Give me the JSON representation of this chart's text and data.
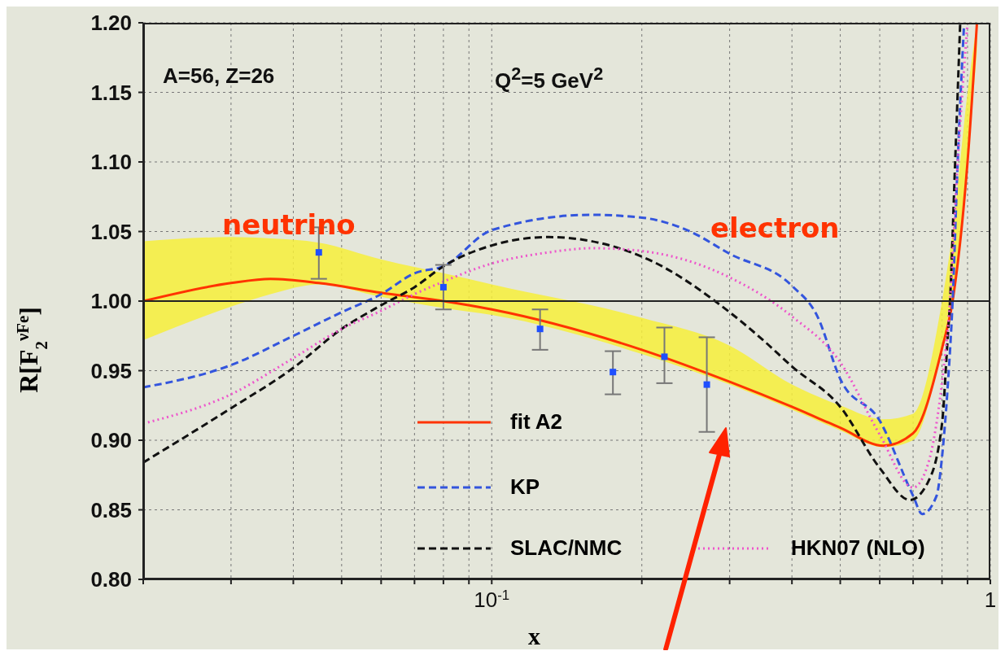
{
  "chart_data": {
    "type": "line",
    "xlabel": "x",
    "ylabel": "R[F$_{2}$$^{νFe}$]",
    "log": "x",
    "grid": true,
    "legend": "bottom",
    "xlim": [
      0.02,
      1
    ],
    "xticks": [
      {
        "value": 0.02,
        "label": null
      },
      {
        "value": 0.03,
        "label": null
      },
      {
        "value": 0.04,
        "label": null
      },
      {
        "value": 0.05,
        "label": null
      },
      {
        "value": 0.06,
        "label": null
      },
      {
        "value": 0.07,
        "label": null
      },
      {
        "value": 0.08,
        "label": null
      },
      {
        "value": 0.09,
        "label": null
      },
      {
        "value": 0.1,
        "label": "10$^{-1}$"
      },
      {
        "value": 0.2,
        "label": null
      },
      {
        "value": 0.3,
        "label": null
      },
      {
        "value": 0.4,
        "label": null
      },
      {
        "value": 0.5,
        "label": null
      },
      {
        "value": 0.6,
        "label": null
      },
      {
        "value": 0.7,
        "label": null
      },
      {
        "value": 0.8,
        "label": null
      },
      {
        "value": 0.9,
        "label": null
      },
      {
        "value": 1,
        "label": "1"
      }
    ],
    "ylim": [
      0.8,
      1.2
    ],
    "yticks": [
      {
        "value": 0.8,
        "label": "0.80"
      },
      {
        "value": 0.85,
        "label": "0.85"
      },
      {
        "value": 0.9,
        "label": "0.90"
      },
      {
        "value": 0.95,
        "label": "0.95"
      },
      {
        "value": 1,
        "label": "1.00"
      },
      {
        "value": 1.05,
        "label": "1.05"
      },
      {
        "value": 1.1,
        "label": "1.10"
      },
      {
        "value": 1.15,
        "label": "1.15"
      },
      {
        "value": 1.2,
        "label": "1.20"
      }
    ],
    "ref_lines": [
      {
        "axis": "y",
        "value": 1,
        "color": "#222222"
      }
    ],
    "annotations": [
      "A=56, Z=26",
      "Q$^{2}$=5 GeV$^{2}$",
      "neutrino",
      "electron"
    ],
    "series": [
      {
        "name": "fit A2",
        "color": "#ff3300",
        "line_style": "solid",
        "x": [
          0.02,
          0.03,
          0.036,
          0.045,
          0.06,
          0.08,
          0.1,
          0.2,
          0.3,
          0.4,
          0.5,
          0.61,
          0.7,
          0.8,
          0.84,
          0.9,
          0.94
        ],
        "values": [
          1.0,
          1.013,
          1.016,
          1.013,
          1.006,
          1.0,
          0.994,
          0.965,
          0.942,
          0.924,
          0.909,
          0.896,
          0.905,
          0.966,
          1.0,
          1.1,
          1.2
        ],
        "lower": [
          0.972,
          0.996,
          1.005,
          1.012,
          1.003,
          0.995,
          0.99,
          0.962,
          0.94,
          0.922,
          0.907,
          0.895,
          0.9,
          0.966,
          1.0,
          1.1,
          1.18
        ],
        "upper": [
          1.043,
          1.046,
          1.045,
          1.042,
          1.03,
          1.02,
          1.012,
          0.988,
          0.968,
          0.94,
          0.925,
          0.915,
          0.919,
          1.0,
          1.05,
          1.15,
          1.2
        ]
      },
      {
        "name": "KP",
        "color": "#3355dd",
        "line_style": "dashed",
        "x": [
          0.02,
          0.03,
          0.04,
          0.05,
          0.06,
          0.07,
          0.08,
          0.1,
          0.158,
          0.2,
          0.25,
          0.3,
          0.4,
          0.45,
          0.5,
          0.6,
          0.7,
          0.73,
          0.78,
          0.8,
          0.82,
          0.84,
          0.86,
          0.886
        ],
        "values": [
          0.938,
          0.954,
          0.975,
          0.992,
          1.005,
          1.02,
          1.025,
          1.051,
          1.062,
          1.06,
          1.05,
          1.034,
          1.011,
          0.989,
          0.944,
          0.914,
          0.86,
          0.847,
          0.86,
          0.888,
          0.935,
          1.0,
          1.1,
          1.2
        ]
      },
      {
        "name": "SLAC/NMC",
        "color": "#111111",
        "line_style": "dashed",
        "x": [
          0.02,
          0.03,
          0.04,
          0.05,
          0.06,
          0.07,
          0.08,
          0.1,
          0.13,
          0.2,
          0.3,
          0.35,
          0.4,
          0.5,
          0.6,
          0.69,
          0.75,
          0.8,
          0.82,
          0.83,
          0.85,
          0.87
        ],
        "values": [
          0.884,
          0.923,
          0.952,
          0.98,
          0.997,
          1.01,
          1.025,
          1.04,
          1.046,
          1.032,
          0.992,
          0.972,
          0.953,
          0.924,
          0.88,
          0.857,
          0.87,
          0.912,
          0.97,
          1.0,
          1.1,
          1.2
        ]
      },
      {
        "name": "HKN07 (NLO)",
        "color": "#ee55cc",
        "line_style": "dotted",
        "x": [
          0.02,
          0.03,
          0.04,
          0.05,
          0.06,
          0.07,
          0.08,
          0.1,
          0.13,
          0.16,
          0.2,
          0.3,
          0.4,
          0.5,
          0.6,
          0.7,
          0.75,
          0.8,
          0.83,
          0.86,
          0.9
        ],
        "values": [
          0.912,
          0.933,
          0.959,
          0.98,
          0.993,
          1.005,
          1.014,
          1.027,
          1.035,
          1.038,
          1.036,
          1.017,
          0.989,
          0.956,
          0.904,
          0.866,
          0.883,
          0.942,
          1.0,
          1.1,
          1.2
        ]
      },
      {
        "type": "scatter",
        "color": "#1f4fff",
        "marker": "square",
        "x": [
          0.045,
          0.08,
          0.125,
          0.175,
          0.222,
          0.27
        ],
        "values": [
          1.035,
          1.01,
          0.98,
          0.949,
          0.96,
          0.94
        ],
        "errors": [
          [
            1.016,
            1.053
          ],
          [
            0.994,
            1.026
          ],
          [
            0.965,
            0.994
          ],
          [
            0.933,
            0.964
          ],
          [
            0.941,
            0.981
          ],
          [
            0.906,
            0.974
          ]
        ]
      }
    ]
  }
}
